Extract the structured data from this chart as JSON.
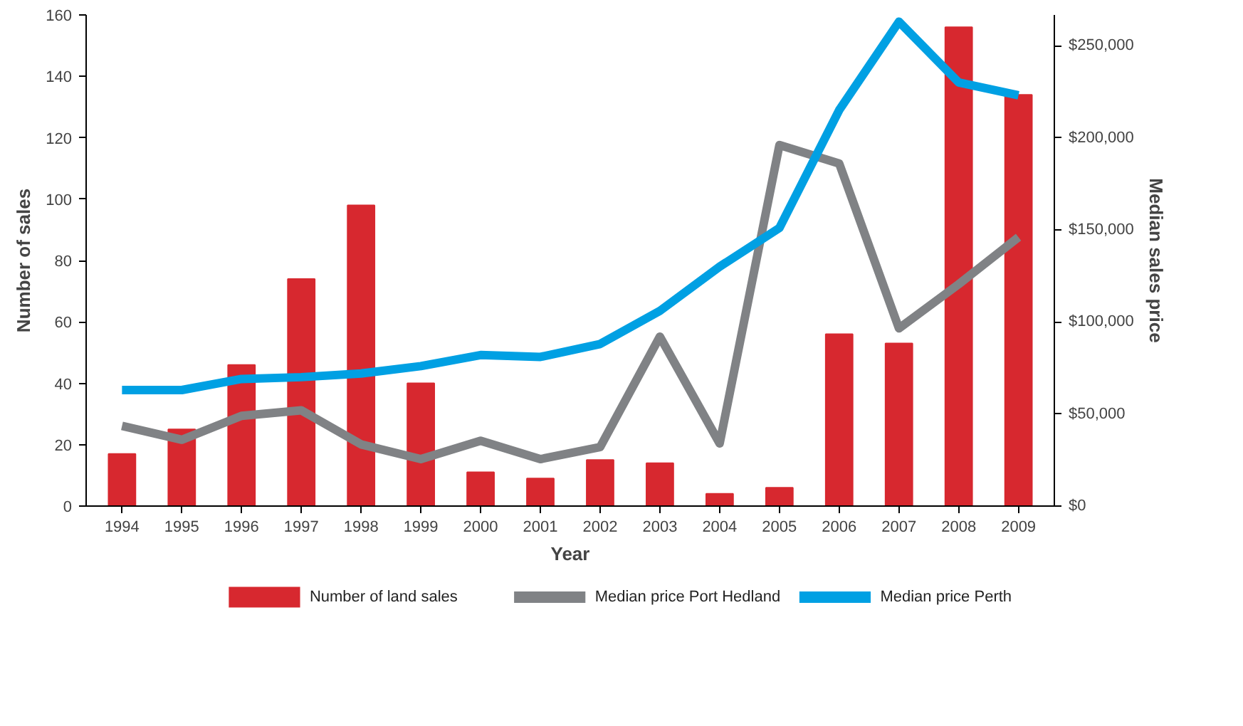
{
  "chart_data": {
    "type": "bar",
    "xlabel": "Year",
    "ylabel": "Number of sales",
    "y2label": "Median sales price",
    "categories": [
      "1994",
      "1995",
      "1996",
      "1997",
      "1998",
      "1999",
      "2000",
      "2001",
      "2002",
      "2003",
      "2004",
      "2005",
      "2006",
      "2007",
      "2008",
      "2009"
    ],
    "series": [
      {
        "name": "Number of land sales",
        "color": "#d7282f",
        "values": [
          17,
          25,
          46,
          74,
          98,
          40,
          11,
          9,
          15,
          14,
          4,
          6,
          56,
          53,
          156,
          134
        ]
      },
      {
        "name": "Median price Port Hedland",
        "type": "line",
        "axis": "y2",
        "color": "#808285",
        "values": [
          43500,
          36000,
          49000,
          52000,
          33500,
          25500,
          35500,
          25500,
          32000,
          92000,
          34000,
          196000,
          186000,
          96500,
          120500,
          146000
        ]
      },
      {
        "name": "Median price Perth",
        "type": "line",
        "axis": "y2",
        "color": "#00a0e3",
        "values": [
          63000,
          63000,
          69000,
          70000,
          72000,
          76000,
          82000,
          81000,
          88000,
          106000,
          130000,
          151000,
          215000,
          263000,
          230000,
          223000
        ]
      }
    ],
    "ylim": [
      0,
      160
    ],
    "yticks": [
      0,
      20,
      40,
      60,
      80,
      100,
      120,
      140,
      160
    ],
    "y2lim": [
      0,
      266667
    ],
    "y2ticks": [
      {
        "value": 0,
        "label": "$0"
      },
      {
        "value": 50000,
        "label": "$50,000"
      },
      {
        "value": 100000,
        "label": "$100,000"
      },
      {
        "value": 150000,
        "label": "$150,000"
      },
      {
        "value": 200000,
        "label": "$200,000"
      },
      {
        "value": 250000,
        "label": "$250,000"
      }
    ],
    "grid": false,
    "legend": "bottom",
    "marker": "none",
    "line_style": "solid"
  }
}
